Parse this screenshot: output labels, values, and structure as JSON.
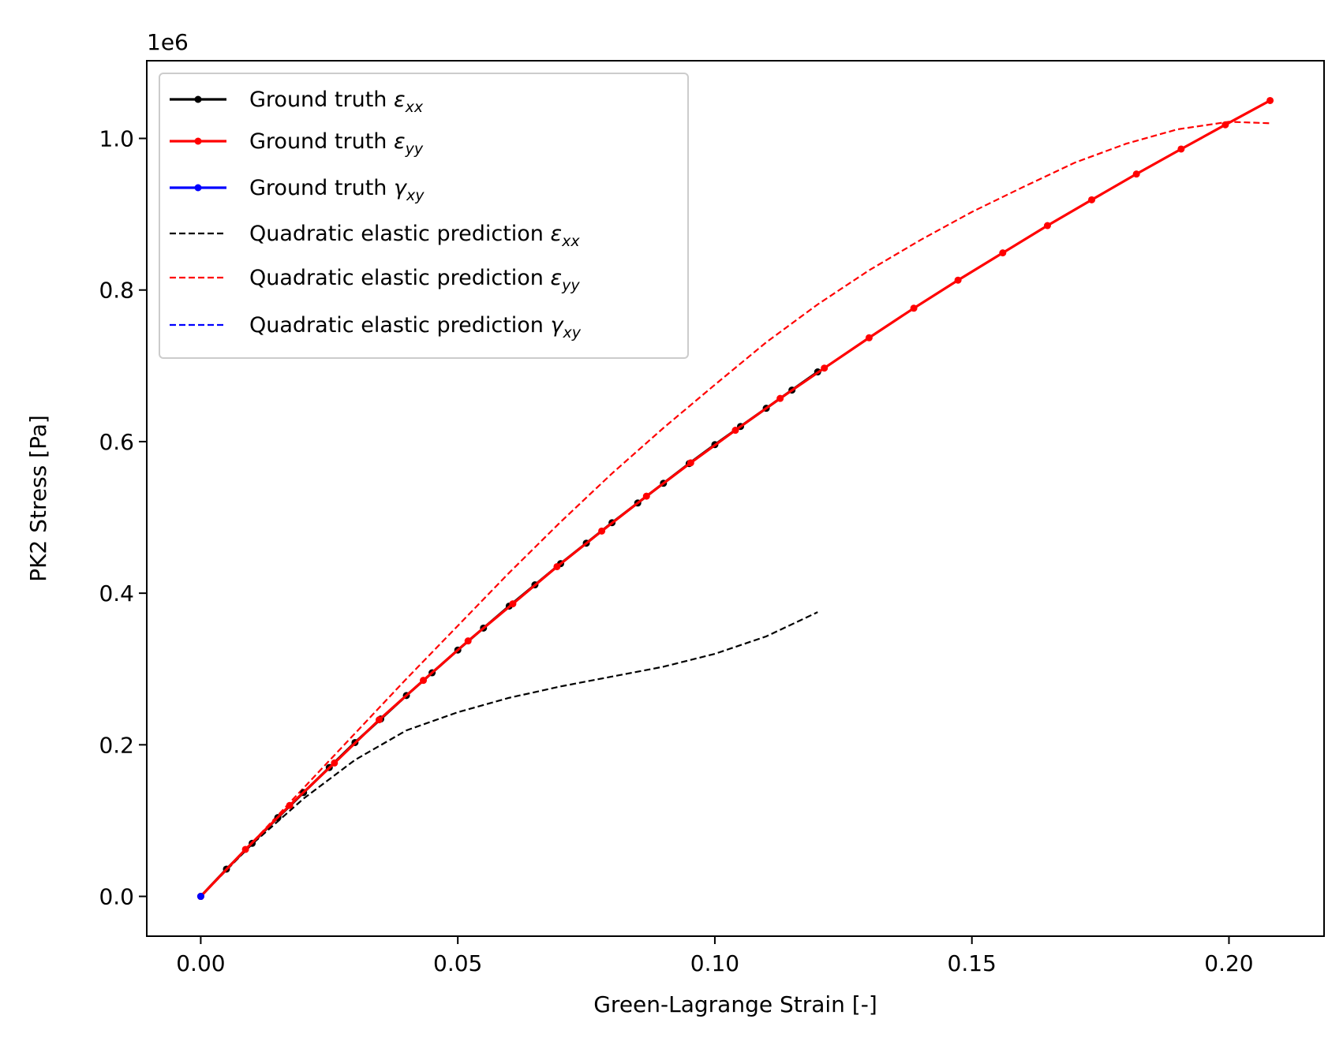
{
  "chart_data": {
    "type": "line",
    "xlabel": "Green-Lagrange Strain [-]",
    "ylabel": "PK2 Stress [Pa]",
    "y_offset_label": "1e6",
    "xlim": [
      -0.0105,
      0.2185
    ],
    "ylim": [
      -0.0525,
      1.1025
    ],
    "x_ticks": [
      0.0,
      0.05,
      0.1,
      0.15,
      0.2
    ],
    "x_tick_labels": [
      "0.00",
      "0.05",
      "0.10",
      "0.15",
      "0.20"
    ],
    "y_ticks": [
      0.0,
      0.2,
      0.4,
      0.6,
      0.8,
      1.0
    ],
    "y_tick_labels": [
      "0.0",
      "0.2",
      "0.4",
      "0.6",
      "0.8",
      "1.0"
    ],
    "grid": false,
    "legend_position": "top-left",
    "series": [
      {
        "name": "Ground truth ε_xx",
        "label_base": "Ground truth ",
        "symbol": "ε",
        "subscript": "xx",
        "color": "#000000",
        "style": "solid-marker",
        "x": [
          0.0,
          0.005,
          0.01,
          0.015,
          0.02,
          0.025,
          0.03,
          0.035,
          0.04,
          0.045,
          0.05,
          0.055,
          0.06,
          0.065,
          0.07,
          0.075,
          0.08,
          0.085,
          0.09,
          0.095,
          0.1,
          0.105,
          0.11,
          0.115,
          0.12
        ],
        "y": [
          0.0,
          0.036,
          0.07,
          0.104,
          0.137,
          0.17,
          0.203,
          0.234,
          0.265,
          0.295,
          0.325,
          0.354,
          0.383,
          0.411,
          0.439,
          0.466,
          0.493,
          0.519,
          0.545,
          0.571,
          0.596,
          0.62,
          0.644,
          0.668,
          0.692
        ]
      },
      {
        "name": "Ground truth ε_yy",
        "label_base": "Ground truth ",
        "symbol": "ε",
        "subscript": "yy",
        "color": "#ff0000",
        "style": "solid-marker",
        "x": [
          0.0,
          0.0087,
          0.0173,
          0.026,
          0.0347,
          0.0433,
          0.052,
          0.0607,
          0.0693,
          0.078,
          0.0867,
          0.0953,
          0.104,
          0.1127,
          0.1213,
          0.13,
          0.1387,
          0.1473,
          0.156,
          0.1647,
          0.1733,
          0.182,
          0.1907,
          0.1993,
          0.208
        ],
        "y": [
          0.0,
          0.062,
          0.12,
          0.176,
          0.233,
          0.285,
          0.337,
          0.386,
          0.435,
          0.482,
          0.528,
          0.572,
          0.615,
          0.657,
          0.697,
          0.737,
          0.776,
          0.813,
          0.849,
          0.885,
          0.919,
          0.953,
          0.986,
          1.018,
          1.05
        ]
      },
      {
        "name": "Ground truth γ_xy",
        "label_base": "Ground truth ",
        "symbol": "γ",
        "subscript": "xy",
        "color": "#0000ff",
        "style": "solid-marker",
        "x": [
          0.0
        ],
        "y": [
          0.0
        ]
      },
      {
        "name": "Quadratic elastic prediction ε_xx",
        "label_base": "Quadratic elastic prediction ",
        "symbol": "ε",
        "subscript": "xx",
        "color": "#000000",
        "style": "dashed",
        "x": [
          0.0,
          0.01,
          0.02,
          0.03,
          0.04,
          0.05,
          0.06,
          0.07,
          0.08,
          0.09,
          0.1,
          0.11,
          0.12
        ],
        "y": [
          0.0,
          0.069,
          0.129,
          0.18,
          0.219,
          0.243,
          0.262,
          0.277,
          0.29,
          0.303,
          0.32,
          0.343,
          0.375
        ]
      },
      {
        "name": "Quadratic elastic prediction ε_yy",
        "label_base": "Quadratic elastic prediction ",
        "symbol": "ε",
        "subscript": "yy",
        "color": "#ff0000",
        "style": "dashed",
        "x": [
          0.0,
          0.01,
          0.02,
          0.03,
          0.04,
          0.05,
          0.06,
          0.07,
          0.08,
          0.09,
          0.1,
          0.11,
          0.12,
          0.13,
          0.14,
          0.15,
          0.16,
          0.17,
          0.18,
          0.19,
          0.2,
          0.208
        ],
        "y": [
          0.0,
          0.071,
          0.143,
          0.215,
          0.287,
          0.357,
          0.427,
          0.494,
          0.558,
          0.618,
          0.675,
          0.731,
          0.781,
          0.826,
          0.866,
          0.903,
          0.936,
          0.968,
          0.993,
          1.012,
          1.022,
          1.02
        ]
      },
      {
        "name": "Quadratic elastic prediction γ_xy",
        "label_base": "Quadratic elastic prediction ",
        "symbol": "γ",
        "subscript": "xy",
        "color": "#0000ff",
        "style": "dashed",
        "x": [],
        "y": []
      }
    ]
  }
}
